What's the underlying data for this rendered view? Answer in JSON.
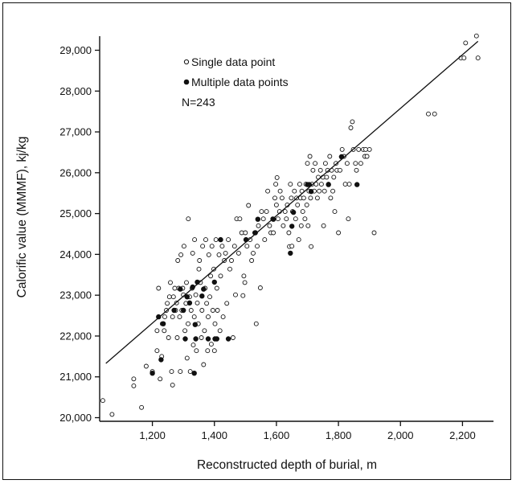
{
  "chart_data": {
    "type": "scatter",
    "xlabel": "Reconstructed depth of burial, m",
    "ylabel": "Calorific value (MMMF), kj/kg",
    "xlim": [
      1030,
      2300
    ],
    "ylim": [
      19900,
      29500
    ],
    "x_ticks": [
      1200,
      1400,
      1600,
      1800,
      2000,
      2200
    ],
    "x_tick_labels": [
      "1,200",
      "1,400",
      "1,600",
      "1,800",
      "2,000",
      "2,200"
    ],
    "y_ticks": [
      20000,
      21000,
      22000,
      23000,
      24000,
      25000,
      26000,
      27000,
      28000,
      29000
    ],
    "y_tick_labels": [
      "20,000",
      "21,000",
      "22,000",
      "23,000",
      "24,000",
      "25,000",
      "26,000",
      "27,000",
      "28,000",
      "29,000"
    ],
    "legend": {
      "position": "top-left",
      "items": [
        {
          "label": "Single data point",
          "marker": "open-circle"
        },
        {
          "label": "Multiple data points",
          "marker": "filled-circle"
        }
      ],
      "note": "N=243"
    },
    "regression_line": {
      "x": [
        1050,
        2250
      ],
      "y": [
        21330,
        29220
      ]
    },
    "series": [
      {
        "name": "Single data point",
        "marker": "open",
        "points": [
          [
            1040,
            20420
          ],
          [
            1070,
            20080
          ],
          [
            1140,
            20780
          ],
          [
            1140,
            20950
          ],
          [
            1165,
            20250
          ],
          [
            1180,
            21260
          ],
          [
            1200,
            21130
          ],
          [
            1215,
            21640
          ],
          [
            1215,
            22130
          ],
          [
            1220,
            23170
          ],
          [
            1225,
            20950
          ],
          [
            1230,
            21500
          ],
          [
            1232,
            22300
          ],
          [
            1238,
            22130
          ],
          [
            1240,
            22470
          ],
          [
            1245,
            22630
          ],
          [
            1248,
            22800
          ],
          [
            1252,
            21960
          ],
          [
            1255,
            22960
          ],
          [
            1258,
            23310
          ],
          [
            1262,
            21130
          ],
          [
            1265,
            20800
          ],
          [
            1265,
            22470
          ],
          [
            1268,
            22960
          ],
          [
            1272,
            23170
          ],
          [
            1275,
            22630
          ],
          [
            1278,
            22810
          ],
          [
            1280,
            21960
          ],
          [
            1282,
            23850
          ],
          [
            1285,
            23170
          ],
          [
            1288,
            22470
          ],
          [
            1290,
            21130
          ],
          [
            1292,
            23990
          ],
          [
            1295,
            22630
          ],
          [
            1298,
            23170
          ],
          [
            1300,
            23010
          ],
          [
            1302,
            24200
          ],
          [
            1305,
            22130
          ],
          [
            1308,
            22800
          ],
          [
            1310,
            23310
          ],
          [
            1312,
            21460
          ],
          [
            1315,
            22300
          ],
          [
            1316,
            24870
          ],
          [
            1320,
            22960
          ],
          [
            1322,
            21130
          ],
          [
            1325,
            22630
          ],
          [
            1328,
            23170
          ],
          [
            1330,
            24030
          ],
          [
            1332,
            21780
          ],
          [
            1335,
            22470
          ],
          [
            1336,
            24360
          ],
          [
            1340,
            23010
          ],
          [
            1342,
            21640
          ],
          [
            1345,
            22810
          ],
          [
            1348,
            22300
          ],
          [
            1350,
            23640
          ],
          [
            1352,
            23850
          ],
          [
            1355,
            23310
          ],
          [
            1358,
            21960
          ],
          [
            1360,
            22630
          ],
          [
            1362,
            24200
          ],
          [
            1365,
            21300
          ],
          [
            1368,
            22130
          ],
          [
            1370,
            23170
          ],
          [
            1372,
            24360
          ],
          [
            1375,
            22800
          ],
          [
            1378,
            21640
          ],
          [
            1380,
            22470
          ],
          [
            1382,
            23990
          ],
          [
            1385,
            22960
          ],
          [
            1388,
            23470
          ],
          [
            1390,
            21800
          ],
          [
            1392,
            24200
          ],
          [
            1395,
            22630
          ],
          [
            1398,
            23640
          ],
          [
            1400,
            21640
          ],
          [
            1402,
            22300
          ],
          [
            1405,
            24360
          ],
          [
            1408,
            23170
          ],
          [
            1410,
            22630
          ],
          [
            1415,
            23990
          ],
          [
            1418,
            22130
          ],
          [
            1420,
            23470
          ],
          [
            1425,
            24200
          ],
          [
            1428,
            22470
          ],
          [
            1432,
            23850
          ],
          [
            1436,
            24030
          ],
          [
            1440,
            22800
          ],
          [
            1445,
            24360
          ],
          [
            1450,
            23640
          ],
          [
            1455,
            23850
          ],
          [
            1460,
            21960
          ],
          [
            1465,
            24200
          ],
          [
            1468,
            23010
          ],
          [
            1472,
            24870
          ],
          [
            1478,
            24030
          ],
          [
            1482,
            24870
          ],
          [
            1488,
            24530
          ],
          [
            1492,
            22990
          ],
          [
            1495,
            23470
          ],
          [
            1498,
            23310
          ],
          [
            1500,
            24530
          ],
          [
            1505,
            24200
          ],
          [
            1510,
            25200
          ],
          [
            1515,
            24360
          ],
          [
            1520,
            23850
          ],
          [
            1525,
            24030
          ],
          [
            1530,
            24530
          ],
          [
            1535,
            22300
          ],
          [
            1538,
            24200
          ],
          [
            1542,
            24700
          ],
          [
            1548,
            23180
          ],
          [
            1552,
            25050
          ],
          [
            1558,
            24870
          ],
          [
            1562,
            24360
          ],
          [
            1568,
            25050
          ],
          [
            1572,
            25550
          ],
          [
            1578,
            24700
          ],
          [
            1582,
            24530
          ],
          [
            1588,
            24870
          ],
          [
            1590,
            24530
          ],
          [
            1595,
            25380
          ],
          [
            1598,
            25720
          ],
          [
            1600,
            25210
          ],
          [
            1602,
            25880
          ],
          [
            1605,
            24870
          ],
          [
            1610,
            25050
          ],
          [
            1612,
            25550
          ],
          [
            1618,
            25380
          ],
          [
            1622,
            24700
          ],
          [
            1628,
            25050
          ],
          [
            1632,
            24870
          ],
          [
            1635,
            25210
          ],
          [
            1640,
            24530
          ],
          [
            1642,
            24190
          ],
          [
            1645,
            25720
          ],
          [
            1648,
            25380
          ],
          [
            1650,
            24200
          ],
          [
            1652,
            25050
          ],
          [
            1658,
            25550
          ],
          [
            1662,
            24870
          ],
          [
            1665,
            25380
          ],
          [
            1668,
            25210
          ],
          [
            1672,
            24360
          ],
          [
            1675,
            25720
          ],
          [
            1678,
            25380
          ],
          [
            1680,
            24700
          ],
          [
            1682,
            25550
          ],
          [
            1685,
            25050
          ],
          [
            1688,
            25380
          ],
          [
            1692,
            24870
          ],
          [
            1695,
            25720
          ],
          [
            1698,
            25210
          ],
          [
            1700,
            26230
          ],
          [
            1702,
            24700
          ],
          [
            1705,
            25550
          ],
          [
            1708,
            26400
          ],
          [
            1710,
            25380
          ],
          [
            1712,
            24190
          ],
          [
            1715,
            25720
          ],
          [
            1718,
            26060
          ],
          [
            1722,
            25550
          ],
          [
            1725,
            26230
          ],
          [
            1728,
            25720
          ],
          [
            1732,
            25380
          ],
          [
            1735,
            25890
          ],
          [
            1738,
            25550
          ],
          [
            1742,
            26060
          ],
          [
            1745,
            25720
          ],
          [
            1750,
            25890
          ],
          [
            1752,
            24700
          ],
          [
            1755,
            25550
          ],
          [
            1758,
            26230
          ],
          [
            1762,
            25890
          ],
          [
            1765,
            26060
          ],
          [
            1768,
            25720
          ],
          [
            1772,
            26400
          ],
          [
            1775,
            25380
          ],
          [
            1778,
            26060
          ],
          [
            1782,
            25550
          ],
          [
            1785,
            25890
          ],
          [
            1788,
            25050
          ],
          [
            1792,
            26230
          ],
          [
            1795,
            26060
          ],
          [
            1800,
            24530
          ],
          [
            1805,
            26060
          ],
          [
            1812,
            26570
          ],
          [
            1818,
            26400
          ],
          [
            1822,
            25720
          ],
          [
            1828,
            26230
          ],
          [
            1832,
            24870
          ],
          [
            1835,
            25720
          ],
          [
            1840,
            27100
          ],
          [
            1845,
            27250
          ],
          [
            1848,
            26570
          ],
          [
            1855,
            26230
          ],
          [
            1858,
            26060
          ],
          [
            1865,
            26570
          ],
          [
            1872,
            26230
          ],
          [
            1880,
            26570
          ],
          [
            1885,
            26400
          ],
          [
            1888,
            26570
          ],
          [
            1892,
            26400
          ],
          [
            1900,
            26570
          ],
          [
            1915,
            24530
          ],
          [
            2090,
            27440
          ],
          [
            2110,
            27440
          ],
          [
            2195,
            28810
          ],
          [
            2205,
            28810
          ],
          [
            2210,
            29180
          ],
          [
            2245,
            29350
          ],
          [
            2250,
            28810
          ]
        ]
      },
      {
        "name": "Multiple data points",
        "marker": "filled",
        "points": [
          [
            1200,
            21090
          ],
          [
            1220,
            22470
          ],
          [
            1228,
            21420
          ],
          [
            1235,
            22300
          ],
          [
            1270,
            22630
          ],
          [
            1290,
            23150
          ],
          [
            1300,
            22630
          ],
          [
            1306,
            21930
          ],
          [
            1312,
            22960
          ],
          [
            1320,
            22810
          ],
          [
            1330,
            23200
          ],
          [
            1335,
            21090
          ],
          [
            1338,
            22280
          ],
          [
            1340,
            21930
          ],
          [
            1345,
            23320
          ],
          [
            1360,
            22980
          ],
          [
            1365,
            23150
          ],
          [
            1380,
            21930
          ],
          [
            1400,
            23320
          ],
          [
            1402,
            21930
          ],
          [
            1408,
            21930
          ],
          [
            1420,
            24360
          ],
          [
            1445,
            21930
          ],
          [
            1502,
            24360
          ],
          [
            1532,
            24530
          ],
          [
            1540,
            24860
          ],
          [
            1590,
            24860
          ],
          [
            1645,
            24030
          ],
          [
            1650,
            24690
          ],
          [
            1655,
            25030
          ],
          [
            1700,
            25710
          ],
          [
            1706,
            25710
          ],
          [
            1712,
            25540
          ],
          [
            1768,
            25710
          ],
          [
            1810,
            26390
          ],
          [
            1860,
            25710
          ]
        ]
      }
    ]
  }
}
